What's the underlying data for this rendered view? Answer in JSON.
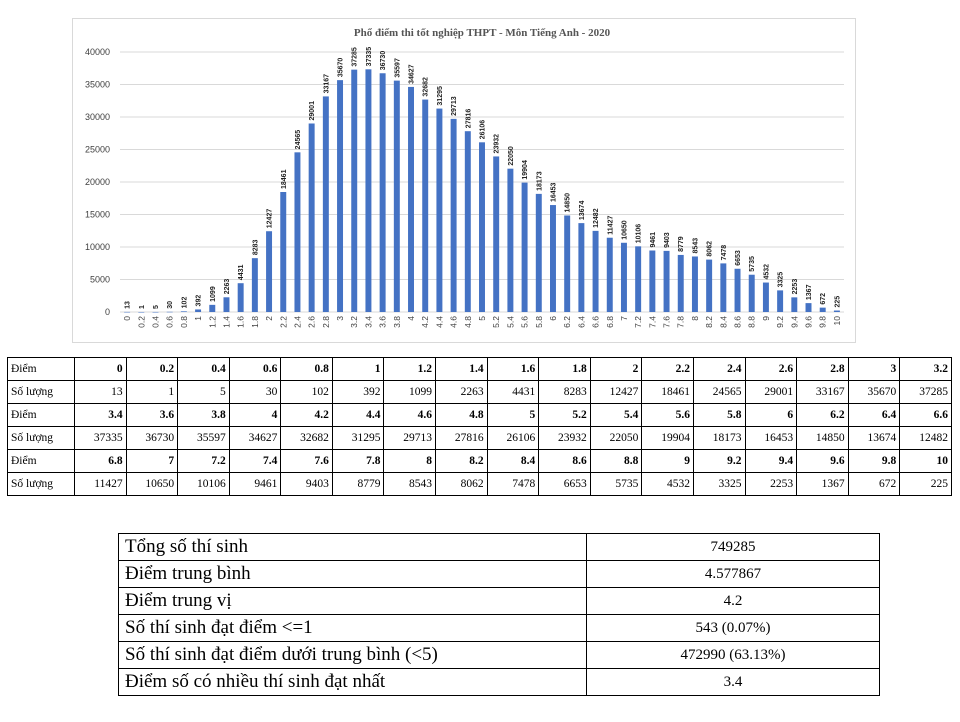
{
  "chart_data": {
    "type": "bar",
    "title": "Phổ điểm thi tốt nghiệp THPT - Môn Tiếng Anh - 2020",
    "categories": [
      "0",
      "0.2",
      "0.4",
      "0.6",
      "0.8",
      "1",
      "1.2",
      "1.4",
      "1.6",
      "1.8",
      "2",
      "2.2",
      "2.4",
      "2.6",
      "2.8",
      "3",
      "3.2",
      "3.4",
      "3.6",
      "3.8",
      "4",
      "4.2",
      "4.4",
      "4.6",
      "4.8",
      "5",
      "5.2",
      "5.4",
      "5.6",
      "5.8",
      "6",
      "6.2",
      "6.4",
      "6.6",
      "6.8",
      "7",
      "7.2",
      "7.4",
      "7.6",
      "7.8",
      "8",
      "8.2",
      "8.4",
      "8.6",
      "8.8",
      "9",
      "9.2",
      "9.4",
      "9.6",
      "9.8",
      "10"
    ],
    "values": [
      13,
      1,
      5,
      30,
      102,
      392,
      1099,
      2263,
      4431,
      8283,
      12427,
      18461,
      24565,
      29001,
      33167,
      35670,
      37285,
      37335,
      36730,
      35597,
      34627,
      32682,
      31295,
      29713,
      27816,
      26106,
      23932,
      22050,
      19904,
      18173,
      16453,
      14850,
      13674,
      12482,
      11427,
      10650,
      10106,
      9461,
      9403,
      8779,
      8543,
      8062,
      7478,
      6653,
      5735,
      4532,
      3325,
      2253,
      1367,
      672,
      225
    ],
    "ylim": [
      0,
      40000
    ],
    "yticks": [
      0,
      5000,
      10000,
      15000,
      20000,
      25000,
      30000,
      35000,
      40000
    ],
    "grid": true,
    "color": "#4472c4"
  },
  "table": {
    "label_score": "Điểm",
    "label_count": "Số lượng"
  },
  "summary": [
    {
      "label": "Tổng số thí sinh",
      "value": "749285"
    },
    {
      "label": "Điểm trung bình",
      "value": "4.577867"
    },
    {
      "label": "Điểm trung vị",
      "value": "4.2"
    },
    {
      "label": "Số thí sinh đạt điểm <=1",
      "value": "543 (0.07%)"
    },
    {
      "label": "Số thí sinh đạt điểm dưới trung bình (<5)",
      "value": "472990 (63.13%)"
    },
    {
      "label": "Điểm số có nhiều thí sinh đạt nhất",
      "value": "3.4"
    }
  ]
}
